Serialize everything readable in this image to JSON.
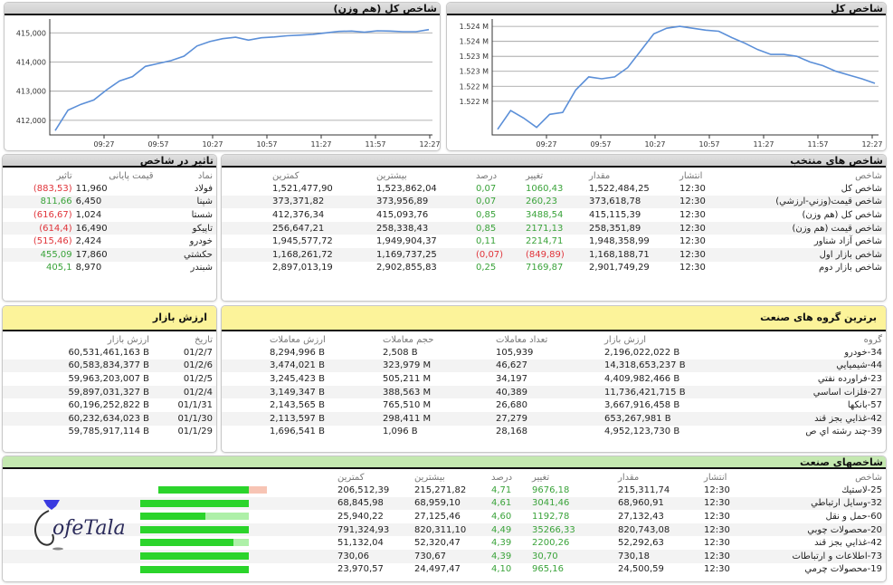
{
  "chart_left": {
    "title": "شاخص کل (هم وزن)",
    "y_ticks": [
      "415,000",
      "414,000",
      "413,000",
      "412,000"
    ],
    "x_ticks": [
      "09:27",
      "09:57",
      "10:27",
      "10:57",
      "11:27",
      "11:57",
      "12:27"
    ]
  },
  "chart_right": {
    "title": "شاخص کل",
    "y_ticks": [
      "1.524 M",
      "1.524 M",
      "1.523 M",
      "1.523 M",
      "1.522 M",
      "1.522 M"
    ],
    "x_ticks": [
      "09:27",
      "09:57",
      "10:27",
      "10:57",
      "11:27",
      "11:57",
      "12:27"
    ]
  },
  "chart_data": [
    {
      "type": "line",
      "title": "شاخص کل (هم وزن)",
      "xlabel": "",
      "ylabel": "",
      "x": [
        "09:09",
        "09:12",
        "09:15",
        "09:18",
        "09:21",
        "09:24",
        "09:27",
        "09:33",
        "09:39",
        "09:45",
        "09:51",
        "09:57",
        "10:03",
        "10:06",
        "10:12",
        "10:18",
        "10:27",
        "10:33",
        "10:45",
        "10:57",
        "11:09",
        "11:21",
        "11:27",
        "11:33",
        "11:45",
        "11:57",
        "12:09",
        "12:21",
        "12:27",
        "12:30"
      ],
      "values": [
        411650,
        412350,
        412550,
        412700,
        413050,
        413350,
        413500,
        413850,
        413950,
        414050,
        414200,
        414550,
        414700,
        414800,
        414850,
        414750,
        414830,
        414860,
        414900,
        414920,
        414950,
        415000,
        415050,
        415060,
        415020,
        415070,
        415060,
        415040,
        415040,
        415110
      ],
      "ylim": [
        411500,
        415350
      ],
      "grid": true
    },
    {
      "type": "line",
      "title": "شاخص کل",
      "xlabel": "",
      "ylabel": "",
      "x": [
        "09:09",
        "09:12",
        "09:15",
        "09:18",
        "09:21",
        "09:24",
        "09:27",
        "09:33",
        "09:39",
        "09:45",
        "09:51",
        "09:57",
        "10:03",
        "10:09",
        "10:15",
        "10:21",
        "10:27",
        "10:33",
        "10:45",
        "10:57",
        "11:09",
        "11:21",
        "11:27",
        "11:33",
        "11:45",
        "11:57",
        "12:09",
        "12:21",
        "12:27",
        "12:30"
      ],
      "values": [
        1521650,
        1522150,
        1521950,
        1521700,
        1522050,
        1522100,
        1522700,
        1523050,
        1523000,
        1523050,
        1523300,
        1523750,
        1524200,
        1524350,
        1524400,
        1524350,
        1524300,
        1524270,
        1524100,
        1523950,
        1523780,
        1523650,
        1523650,
        1523600,
        1523450,
        1523350,
        1523200,
        1523100,
        1523000,
        1522880
      ],
      "ylim": [
        1521500,
        1524500
      ],
      "grid": true
    }
  ],
  "impact": {
    "title": "تاثیر در شاخص",
    "headers": [
      "نماد",
      "قیمت پایانی",
      "تاثیر"
    ],
    "rows": [
      {
        "symbol": "فولاد",
        "price": "11,960",
        "impact": "(883,53)",
        "neg": true
      },
      {
        "symbol": "شپنا",
        "price": "6,450",
        "impact": "811,66",
        "neg": false
      },
      {
        "symbol": "شستا",
        "price": "1,024",
        "impact": "(616,67)",
        "neg": true
      },
      {
        "symbol": "تاپيكو",
        "price": "16,490",
        "impact": "(614,4)",
        "neg": true
      },
      {
        "symbol": "خودرو",
        "price": "2,424",
        "impact": "(515,46)",
        "neg": true
      },
      {
        "symbol": "حكشتي",
        "price": "17,860",
        "impact": "455,09",
        "neg": false
      },
      {
        "symbol": "شبندر",
        "price": "8,970",
        "impact": "405,1",
        "neg": false
      }
    ]
  },
  "selected_indices": {
    "title": "شاخص های منتخب",
    "headers": [
      "شاخص",
      "انتشار",
      "مقدار",
      "تغییر",
      "درصد",
      "بیشترین",
      "کمترین"
    ],
    "rows": [
      {
        "name": "شاخص كل",
        "time": "12:30",
        "value": "1,522,484,25",
        "change": "1060,43",
        "pct": "0,07",
        "max": "1,523,862,04",
        "min": "1,521,477,90",
        "neg": false
      },
      {
        "name": "شاخص قيمت(وزني-ارزشي)",
        "time": "12:30",
        "value": "373,618,78",
        "change": "260,23",
        "pct": "0,07",
        "max": "373,956,89",
        "min": "373,371,82",
        "neg": false
      },
      {
        "name": "شاخص كل (هم وزن)",
        "time": "12:30",
        "value": "415,115,39",
        "change": "3488,54",
        "pct": "0,85",
        "max": "415,093,76",
        "min": "412,376,34",
        "neg": false
      },
      {
        "name": "شاخص قيمت (هم وزن)",
        "time": "12:30",
        "value": "258,351,89",
        "change": "2171,13",
        "pct": "0,85",
        "max": "258,338,43",
        "min": "256,647,21",
        "neg": false
      },
      {
        "name": "شاخص آزاد شناور",
        "time": "12:30",
        "value": "1,948,358,99",
        "change": "2214,71",
        "pct": "0,11",
        "max": "1,949,904,37",
        "min": "1,945,577,72",
        "neg": false
      },
      {
        "name": "شاخص بازار اول",
        "time": "12:30",
        "value": "1,168,188,71",
        "change": "(849,89)",
        "pct": "(0,07)",
        "max": "1,169,737,25",
        "min": "1,168,261,72",
        "neg": true
      },
      {
        "name": "شاخص بازار دوم",
        "time": "12:30",
        "value": "2,901,749,29",
        "change": "7169,87",
        "pct": "0,25",
        "max": "2,902,855,83",
        "min": "2,897,013,19",
        "neg": false
      }
    ]
  },
  "market_value": {
    "title": "ارزش بازار",
    "headers": [
      "تاریخ",
      "ارزش بازار"
    ],
    "rows": [
      {
        "date": "01/2/7",
        "value": "60,531,461,163 B"
      },
      {
        "date": "01/2/6",
        "value": "60,583,834,377 B"
      },
      {
        "date": "01/2/5",
        "value": "59,963,203,007 B"
      },
      {
        "date": "01/2/4",
        "value": "59,897,031,327 B"
      },
      {
        "date": "01/1/31",
        "value": "60,196,252,822 B"
      },
      {
        "date": "01/1/30",
        "value": "60,232,634,023 B"
      },
      {
        "date": "01/1/29",
        "value": "59,785,917,114 B"
      }
    ]
  },
  "top_groups": {
    "title": "برترین گروه های صنعت",
    "headers": [
      "گروه",
      "ارزش بازار",
      "تعداد معاملات",
      "حجم معاملات",
      "ارزش معاملات"
    ],
    "rows": [
      {
        "group": "34-خودرو",
        "mcap": "2,196,022,022 B",
        "count": "105,939",
        "volume": "2,508 B",
        "value": "8,294,996 B"
      },
      {
        "group": "44-شيميايي",
        "mcap": "14,318,653,237 B",
        "count": "46,627",
        "volume": "323,979 M",
        "value": "3,474,021 B"
      },
      {
        "group": "23-فراورده نفتي",
        "mcap": "4,409,982,466 B",
        "count": "34,197",
        "volume": "505,211 M",
        "value": "3,245,423 B"
      },
      {
        "group": "27-فلزات اساسي",
        "mcap": "11,736,421,715 B",
        "count": "40,389",
        "volume": "388,563 M",
        "value": "3,149,347 B"
      },
      {
        "group": "57-بانكها",
        "mcap": "3,667,916,458 B",
        "count": "26,680",
        "volume": "765,510 M",
        "value": "2,143,565 B"
      },
      {
        "group": "42-غذايي بجز قند",
        "mcap": "653,267,981 B",
        "count": "27,279",
        "volume": "298,411 M",
        "value": "2,113,597 B"
      },
      {
        "group": "39-چند رشته اي ص",
        "mcap": "4,952,123,730 B",
        "count": "28,168",
        "volume": "1,096 B",
        "value": "1,696,541 B"
      }
    ]
  },
  "industry_indices": {
    "title": "شاخصهای صنعت",
    "headers": [
      "شاخص",
      "انتشار",
      "مقدار",
      "تغییر",
      "درصد",
      "بیشترین",
      "کمترین"
    ],
    "rows": [
      {
        "name": "25-لاستيك",
        "time": "12:30",
        "value": "215,311,74",
        "change": "9676,18",
        "pct": "4,71",
        "max": "215,271,82",
        "min": "206,512,39",
        "bar_start": 20,
        "bar_green": 100,
        "bar_extra": 20,
        "extra_color": "#f7c4b4"
      },
      {
        "name": "32-وسايل ارتباطي",
        "time": "12:30",
        "value": "68,960,91",
        "change": "3041,46",
        "pct": "4,61",
        "max": "68,959,10",
        "min": "68,845,98",
        "bar_start": 0,
        "bar_green": 120,
        "bar_extra": 0,
        "extra_color": ""
      },
      {
        "name": "60-حمل و نقل",
        "time": "12:30",
        "value": "27,132,43",
        "change": "1192,78",
        "pct": "4,60",
        "max": "27,125,46",
        "min": "25,940,22",
        "bar_start": 0,
        "bar_green": 72,
        "bar_extra": 48,
        "extra_color": "#aef0a8"
      },
      {
        "name": "20-محصولات چوبي",
        "time": "12:30",
        "value": "820,743,08",
        "change": "35266,33",
        "pct": "4,49",
        "max": "820,311,10",
        "min": "791,324,93",
        "bar_start": 0,
        "bar_green": 120,
        "bar_extra": 0,
        "extra_color": ""
      },
      {
        "name": "42-غذايي بجز قند",
        "time": "12:30",
        "value": "52,292,63",
        "change": "2200,26",
        "pct": "4,39",
        "max": "52,320,47",
        "min": "51,132,04",
        "bar_start": 0,
        "bar_green": 103,
        "bar_extra": 17,
        "extra_color": "#aef0a8"
      },
      {
        "name": "73-اطلاعات و ارتباطات",
        "time": "12:30",
        "value": "730,18",
        "change": "30,70",
        "pct": "4,39",
        "max": "730,67",
        "min": "730,06",
        "bar_start": 0,
        "bar_green": 120,
        "bar_extra": 0,
        "extra_color": ""
      },
      {
        "name": "19-محصولات چرمي",
        "time": "12:30",
        "value": "24,500,59",
        "change": "965,16",
        "pct": "4,10",
        "max": "24,497,47",
        "min": "23,970,57",
        "bar_start": 0,
        "bar_green": 120,
        "bar_extra": 0,
        "extra_color": ""
      }
    ]
  },
  "logo": {
    "text": "ofeTala"
  },
  "colors": {
    "positive": "#3aa33a",
    "negative": "#e0343a",
    "line": "#5b8fd8",
    "bar_green": "#2bd42b",
    "yellow_header": "#fcf39a",
    "green_header": "#c4e8b0"
  }
}
